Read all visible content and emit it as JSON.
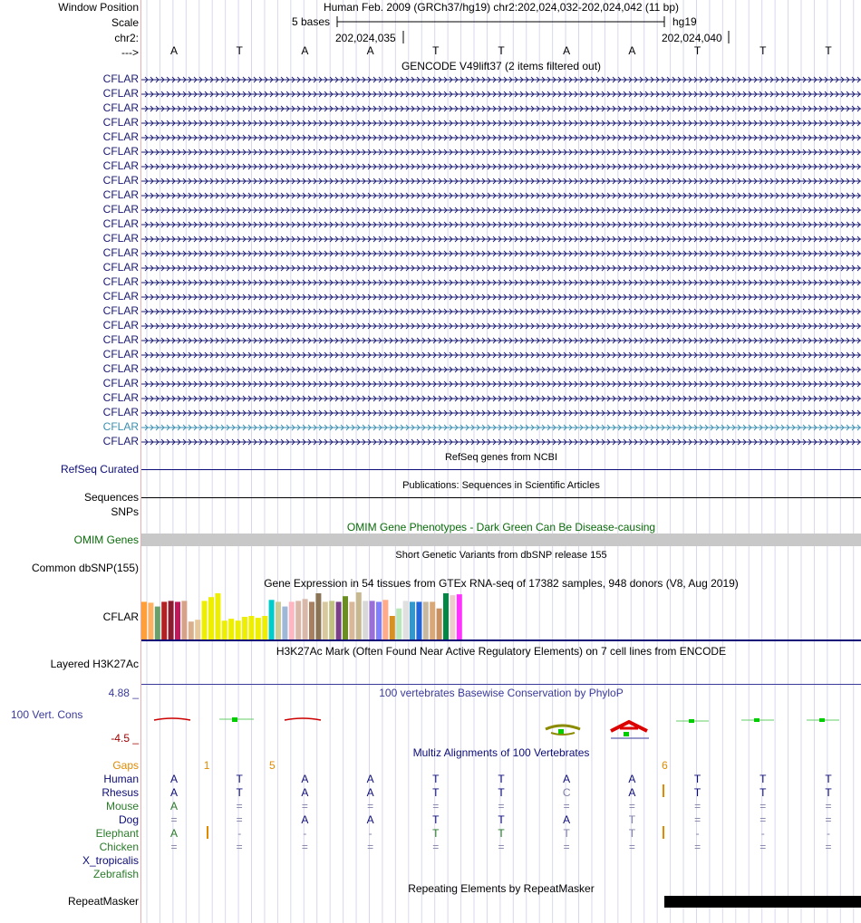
{
  "colors": {
    "gencode_label": "#1a1a73",
    "gencode_highlight": "#3a8fb0",
    "refseq": "#0c0c78",
    "omim": "#0a6b0a",
    "omim_bar": "#c8c8c8",
    "phylop": "#3a3a9a",
    "phylop_neg": "#a00000",
    "gaps": "#e08a00",
    "human": "#0c0c78",
    "mammal": "#0c0c78",
    "mouse": "#2a7a2a",
    "elephant": "#2a7a2a",
    "chicken": "#2a7a2a",
    "xtrop": "#0c0c78",
    "zebrafish": "#2a7a2a",
    "grid": "#d8d8ec"
  },
  "ruler": {
    "window_label": "Window Position",
    "scale_label": "Scale",
    "chr_label": "chr2:",
    "strand_label": "--->",
    "assembly_text": "Human Feb. 2009 (GRCh37/hg19)   chr2:202,024,032-202,024,042 (11 bp)",
    "scale_text": "5 bases",
    "scale_db": "hg19",
    "pos1": "202,024,035",
    "pos2": "202,024,040",
    "bases": [
      "A",
      "T",
      "A",
      "A",
      "T",
      "T",
      "A",
      "A",
      "T",
      "T",
      "T"
    ]
  },
  "gencode": {
    "title": "GENCODE V49lift37 (2 items filtered out)",
    "labels": [
      "CFLAR",
      "CFLAR",
      "CFLAR",
      "CFLAR",
      "CFLAR",
      "CFLAR",
      "CFLAR",
      "CFLAR",
      "CFLAR",
      "CFLAR",
      "CFLAR",
      "CFLAR",
      "CFLAR",
      "CFLAR",
      "CFLAR",
      "CFLAR",
      "CFLAR",
      "CFLAR",
      "CFLAR",
      "CFLAR",
      "CFLAR",
      "CFLAR",
      "CFLAR",
      "CFLAR",
      "CFLAR",
      "CFLAR"
    ],
    "highlight_index": 24
  },
  "refseq": {
    "title": "RefSeq genes from NCBI",
    "label": "RefSeq Curated"
  },
  "publications": {
    "title": "Publications: Sequences in Scientific Articles",
    "label": "Sequences"
  },
  "snps": {
    "label": "SNPs"
  },
  "omim": {
    "title": "OMIM Gene Phenotypes - Dark Green Can Be Disease-causing",
    "label": "OMIM Genes"
  },
  "dbsnp": {
    "title": "Short Genetic Variants from dbSNP release 155",
    "label": "Common dbSNP(155)"
  },
  "gtex": {
    "title": "Gene Expression in 54 tissues from GTEx RNA-seq of 17382 samples, 948 donors (V8, Aug 2019)",
    "label": "CFLAR",
    "bars": [
      {
        "h": 0.8,
        "c": "#ff9f3a"
      },
      {
        "h": 0.78,
        "c": "#ffb060"
      },
      {
        "h": 0.7,
        "c": "#6aa06a"
      },
      {
        "h": 0.8,
        "c": "#b22222"
      },
      {
        "h": 0.82,
        "c": "#8b1c30"
      },
      {
        "h": 0.8,
        "c": "#c2185b"
      },
      {
        "h": 0.82,
        "c": "#d6a38a"
      },
      {
        "h": 0.38,
        "c": "#d8b090"
      },
      {
        "h": 0.42,
        "c": "#e8c898"
      },
      {
        "h": 0.82,
        "c": "#eeee00"
      },
      {
        "h": 0.9,
        "c": "#eeee00"
      },
      {
        "h": 0.98,
        "c": "#eeee00"
      },
      {
        "h": 0.4,
        "c": "#eeee00"
      },
      {
        "h": 0.44,
        "c": "#eeee00"
      },
      {
        "h": 0.4,
        "c": "#eeee00"
      },
      {
        "h": 0.48,
        "c": "#eeee00"
      },
      {
        "h": 0.5,
        "c": "#eeee00"
      },
      {
        "h": 0.46,
        "c": "#eeee00"
      },
      {
        "h": 0.5,
        "c": "#eeee00"
      },
      {
        "h": 0.84,
        "c": "#00cccc"
      },
      {
        "h": 0.8,
        "c": "#cccc99"
      },
      {
        "h": 0.7,
        "c": "#a0b8d8"
      },
      {
        "h": 0.8,
        "c": "#ffb6c1"
      },
      {
        "h": 0.82,
        "c": "#d8b8a8"
      },
      {
        "h": 0.86,
        "c": "#d8b8a8"
      },
      {
        "h": 0.8,
        "c": "#a88060"
      },
      {
        "h": 0.98,
        "c": "#8b7355"
      },
      {
        "h": 0.8,
        "c": "#d8c8a0"
      },
      {
        "h": 0.82,
        "c": "#c0c080"
      },
      {
        "h": 0.8,
        "c": "#7b3f8a"
      },
      {
        "h": 0.92,
        "c": "#6b8e23"
      },
      {
        "h": 0.8,
        "c": "#d8b898"
      },
      {
        "h": 1.0,
        "c": "#c8b890"
      },
      {
        "h": 0.82,
        "c": "#d8d8d8"
      },
      {
        "h": 0.82,
        "c": "#9a70d8"
      },
      {
        "h": 0.8,
        "c": "#8080ff"
      },
      {
        "h": 0.84,
        "c": "#ffaa88"
      },
      {
        "h": 0.5,
        "c": "#d89020"
      },
      {
        "h": 0.66,
        "c": "#b8e8b8"
      },
      {
        "h": 0.82,
        "c": "#e0e0e0"
      },
      {
        "h": 0.8,
        "c": "#3399cc"
      },
      {
        "h": 0.8,
        "c": "#2266dd"
      },
      {
        "h": 0.8,
        "c": "#c8b8a0"
      },
      {
        "h": 0.8,
        "c": "#d8a878"
      },
      {
        "h": 0.66,
        "c": "#c89060"
      },
      {
        "h": 0.98,
        "c": "#008844"
      },
      {
        "h": 0.94,
        "c": "#eecccc"
      },
      {
        "h": 0.96,
        "c": "#ff33ff"
      }
    ]
  },
  "h3k27ac": {
    "title": "H3K27Ac Mark (Often Found Near Active Regulatory Elements) on 7 cell lines from ENCODE",
    "label": "Layered H3K27Ac"
  },
  "phylop": {
    "title": "100 vertebrates Basewise Conservation by PhyloP",
    "label": "100 Vert. Cons",
    "max_label": "4.88 _",
    "min_label": "-4.5 _"
  },
  "multiz": {
    "title": "Multiz Alignments of 100 Vertebrates",
    "gaps_label": "Gaps",
    "gap_numbers": [
      {
        "col": 0.5,
        "t": "1"
      },
      {
        "col": 1.5,
        "t": "5"
      },
      {
        "col": 7.5,
        "t": "6"
      }
    ],
    "species": [
      {
        "name": "Human",
        "color": "human",
        "seq": [
          "A",
          "T",
          "A",
          "A",
          "T",
          "T",
          "A",
          "A",
          "T",
          "T",
          "T"
        ]
      },
      {
        "name": "Rhesus",
        "color": "mammal",
        "seq": [
          "A",
          "T",
          "A",
          "A",
          "T",
          "T",
          "C",
          "A",
          "T",
          "T",
          "T"
        ]
      },
      {
        "name": "Mouse",
        "color": "mouse",
        "seq": [
          "A",
          "=",
          "=",
          "=",
          "=",
          "=",
          "=",
          "=",
          "=",
          "=",
          "="
        ]
      },
      {
        "name": "Dog",
        "color": "mammal",
        "seq": [
          "=",
          "=",
          "A",
          "A",
          "T",
          "T",
          "A",
          "T",
          "=",
          "=",
          "="
        ]
      },
      {
        "name": "Elephant",
        "color": "elephant",
        "seq": [
          "A",
          "-",
          "-",
          "-",
          "T",
          "T",
          "T",
          "T",
          "-",
          "-",
          "-"
        ]
      },
      {
        "name": "Chicken",
        "color": "chicken",
        "seq": [
          "=",
          "=",
          "=",
          "=",
          "=",
          "=",
          "=",
          "=",
          "=",
          "=",
          "="
        ]
      },
      {
        "name": "X_tropicalis",
        "color": "xtrop",
        "seq": [
          "",
          "",
          "",
          "",
          "",
          "",
          "",
          "",
          "",
          "",
          ""
        ]
      },
      {
        "name": "Zebrafish",
        "color": "zebrafish",
        "seq": [
          "",
          "",
          "",
          "",
          "",
          "",
          "",
          "",
          "",
          "",
          ""
        ]
      }
    ]
  },
  "repeatmasker": {
    "title": "Repeating Elements by RepeatMasker",
    "label": "RepeatMasker"
  }
}
